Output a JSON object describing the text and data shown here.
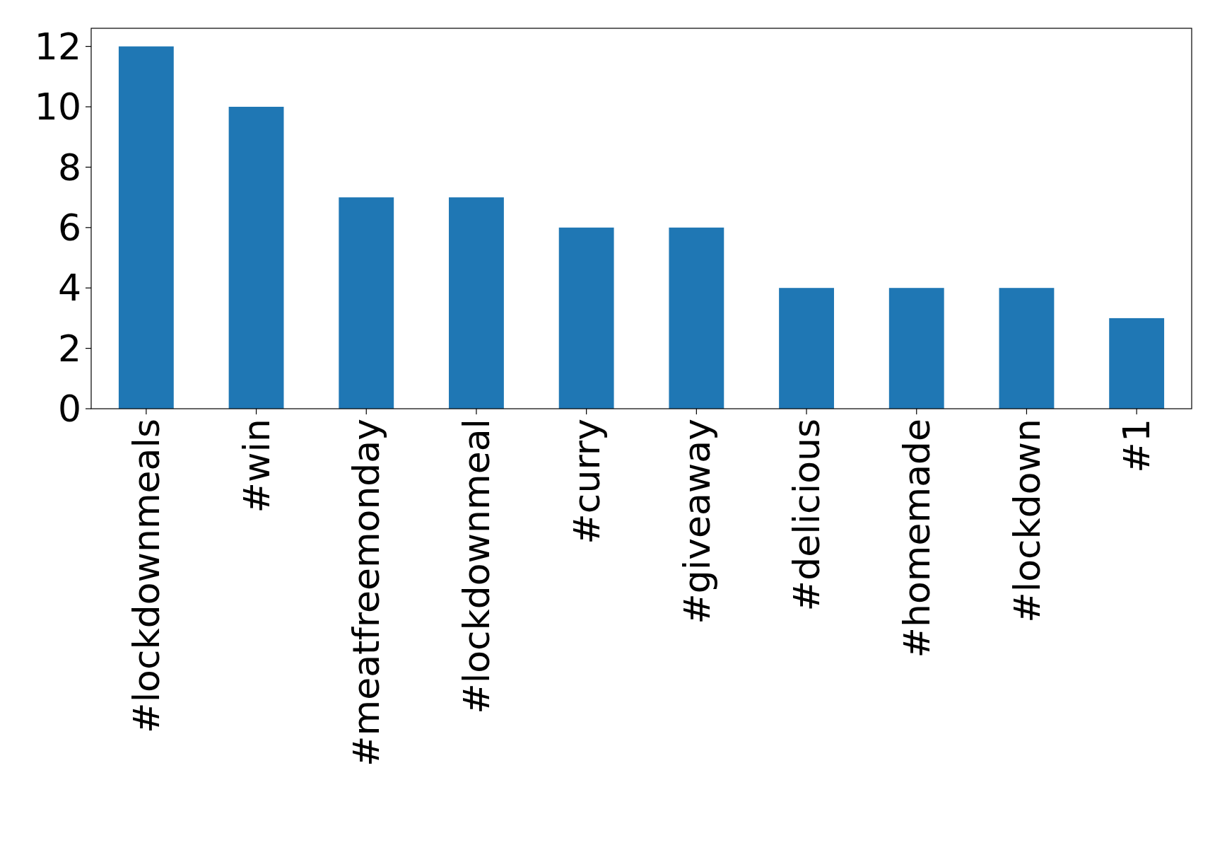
{
  "chart_data": {
    "type": "bar",
    "categories": [
      "#lockdownmeals",
      "#win",
      "#meatfreemonday",
      "#lockdownmeal",
      "#curry",
      "#giveaway",
      "#delicious",
      "#homemade",
      "#lockdown",
      "#1"
    ],
    "values": [
      12,
      10,
      7,
      7,
      6,
      6,
      4,
      4,
      4,
      3
    ],
    "color": "#1f77b4",
    "ylim": [
      0,
      12.6
    ],
    "yticks": [
      0,
      2,
      4,
      6,
      8,
      10,
      12
    ],
    "grid": false
  }
}
